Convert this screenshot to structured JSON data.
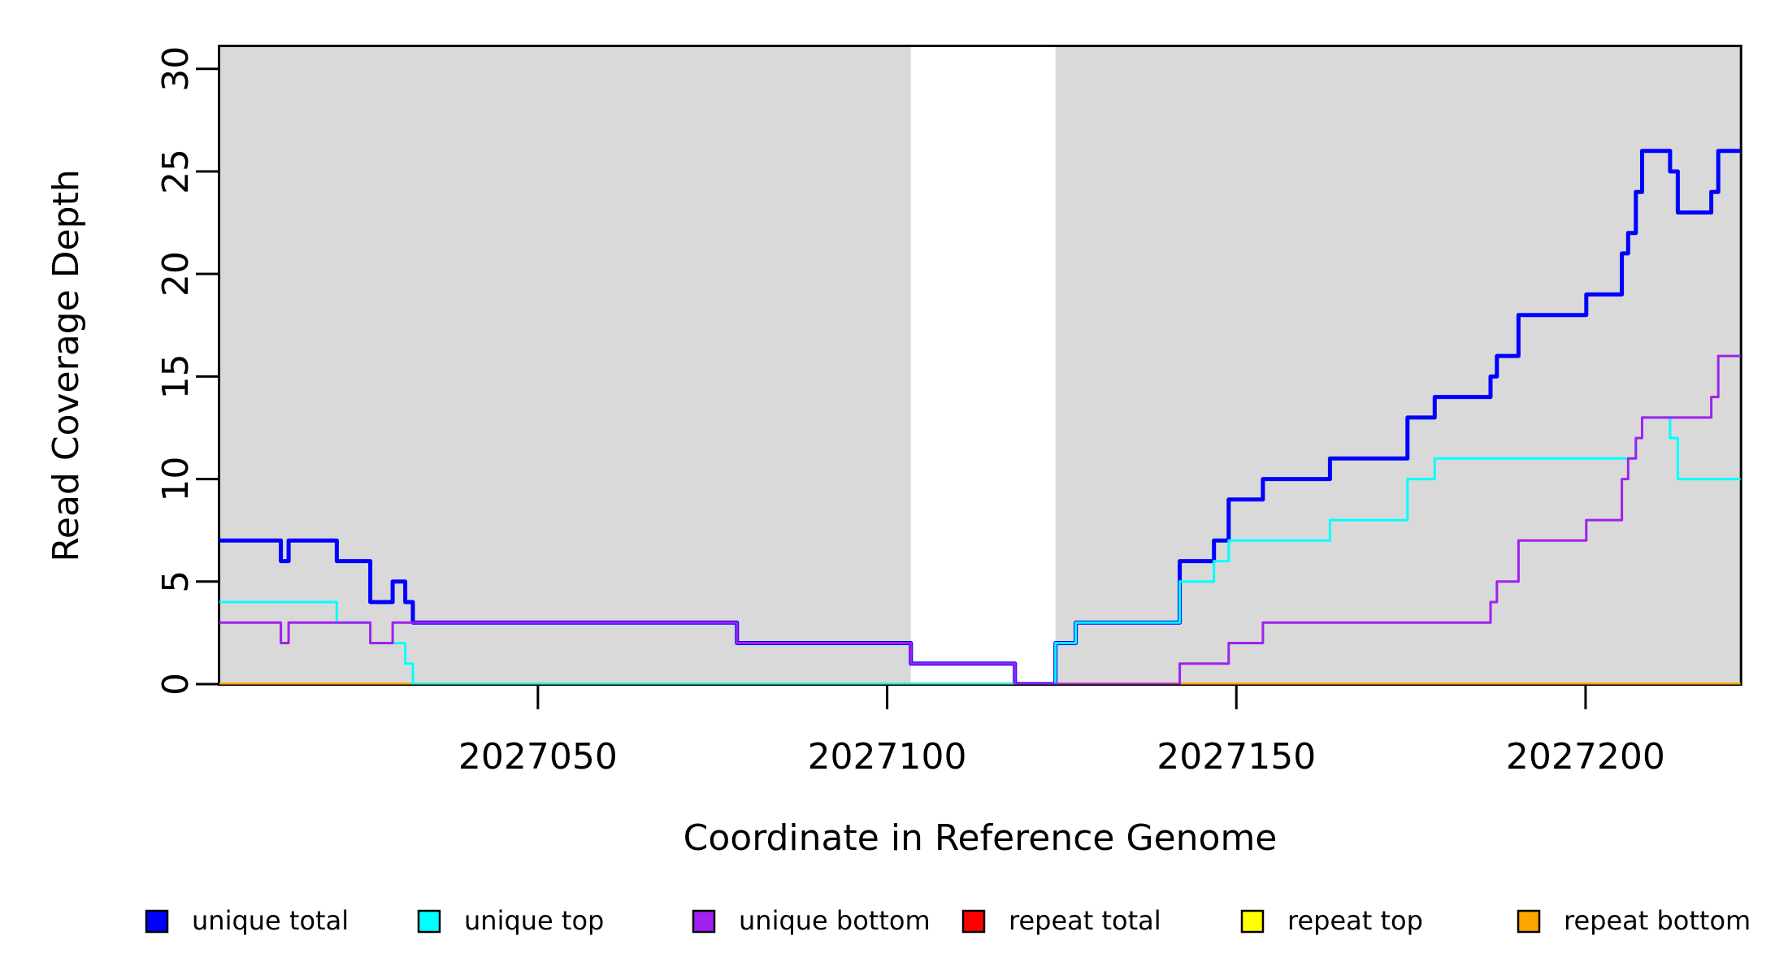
{
  "figure": {
    "background": "#FFFFFF",
    "frame_color": "#000000"
  },
  "chart_data": {
    "type": "line",
    "subtype": "step-coverage",
    "title": "",
    "xlabel": "Coordinate in Reference Genome",
    "ylabel": "Read Coverage Depth",
    "xlim": [
      2027004.4,
      2027222.2
    ],
    "ylim": [
      0,
      31.1
    ],
    "x_ticks": [
      2027050,
      2027100,
      2027150,
      2027200
    ],
    "y_ticks": [
      0,
      5,
      10,
      15,
      20,
      25,
      30
    ],
    "grid": "off",
    "plot_background": "#FFFFFF",
    "shaded_color": "#D9D9D9",
    "shaded_regions": [
      {
        "x0": 2027004.4,
        "x1": 2027103.4
      },
      {
        "x0": 2027124.1,
        "x1": 2027222.2
      }
    ],
    "series": [
      {
        "name": "repeat total",
        "color": "#FF0000",
        "width": 3,
        "points": [
          [
            2027004.4,
            0
          ]
        ]
      },
      {
        "name": "repeat top",
        "color": "#FFFF00",
        "width": 3,
        "points": [
          [
            2027004.4,
            0
          ]
        ]
      },
      {
        "name": "repeat bottom",
        "color": "#FFA500",
        "width": 4,
        "points": [
          [
            2027004.4,
            0
          ]
        ]
      },
      {
        "name": "unique total",
        "color": "#0000FF",
        "width": 5,
        "points": [
          [
            2027004.4,
            7
          ],
          [
            2027013.2,
            6
          ],
          [
            2027014.3,
            7
          ],
          [
            2027021.2,
            6
          ],
          [
            2027026.0,
            4
          ],
          [
            2027029.2,
            5
          ],
          [
            2027031.0,
            4
          ],
          [
            2027032.1,
            3
          ],
          [
            2027078.5,
            2
          ],
          [
            2027103.4,
            1
          ],
          [
            2027118.3,
            0
          ],
          [
            2027124.1,
            2
          ],
          [
            2027127.0,
            3
          ],
          [
            2027141.9,
            6
          ],
          [
            2027146.8,
            7
          ],
          [
            2027148.9,
            9
          ],
          [
            2027153.8,
            10
          ],
          [
            2027163.4,
            11
          ],
          [
            2027174.5,
            13
          ],
          [
            2027178.4,
            14
          ],
          [
            2027186.4,
            15
          ],
          [
            2027187.3,
            16
          ],
          [
            2027190.4,
            18
          ],
          [
            2027200.1,
            19
          ],
          [
            2027205.2,
            21
          ],
          [
            2027206.1,
            22
          ],
          [
            2027207.2,
            24
          ],
          [
            2027208.1,
            26
          ],
          [
            2027212.1,
            25
          ],
          [
            2027213.2,
            23
          ],
          [
            2027218.0,
            24
          ],
          [
            2027219.0,
            26
          ]
        ]
      },
      {
        "name": "unique top",
        "color": "#00FFFF",
        "width": 3,
        "points": [
          [
            2027004.4,
            4
          ],
          [
            2027021.2,
            3
          ],
          [
            2027026.0,
            2
          ],
          [
            2027031.0,
            1
          ],
          [
            2027032.1,
            0
          ],
          [
            2027124.1,
            2
          ],
          [
            2027127.0,
            3
          ],
          [
            2027141.9,
            5
          ],
          [
            2027146.8,
            6
          ],
          [
            2027148.9,
            7
          ],
          [
            2027163.4,
            8
          ],
          [
            2027174.5,
            10
          ],
          [
            2027178.4,
            11
          ],
          [
            2027207.2,
            12
          ],
          [
            2027208.1,
            13
          ],
          [
            2027212.1,
            12
          ],
          [
            2027213.2,
            10
          ]
        ]
      },
      {
        "name": "unique bottom",
        "color": "#A020F0",
        "width": 3,
        "points": [
          [
            2027004.4,
            3
          ],
          [
            2027013.2,
            2
          ],
          [
            2027014.3,
            3
          ],
          [
            2027026.0,
            2
          ],
          [
            2027029.2,
            3
          ],
          [
            2027078.5,
            2
          ],
          [
            2027103.4,
            1
          ],
          [
            2027118.3,
            0
          ],
          [
            2027141.9,
            1
          ],
          [
            2027148.9,
            2
          ],
          [
            2027153.8,
            3
          ],
          [
            2027186.4,
            4
          ],
          [
            2027187.3,
            5
          ],
          [
            2027190.4,
            7
          ],
          [
            2027200.1,
            8
          ],
          [
            2027205.2,
            10
          ],
          [
            2027206.1,
            11
          ],
          [
            2027207.2,
            12
          ],
          [
            2027208.1,
            13
          ],
          [
            2027218.0,
            14
          ],
          [
            2027219.0,
            16
          ]
        ]
      }
    ],
    "legend": {
      "position": "bottom-horizontal",
      "items": [
        {
          "label": "unique total",
          "color": "#0000FF"
        },
        {
          "label": "unique top",
          "color": "#00FFFF"
        },
        {
          "label": "unique bottom",
          "color": "#A020F0"
        },
        {
          "label": "repeat total",
          "color": "#FF0000"
        },
        {
          "label": "repeat top",
          "color": "#FFFF00"
        },
        {
          "label": "repeat bottom",
          "color": "#FFA500"
        }
      ]
    }
  }
}
